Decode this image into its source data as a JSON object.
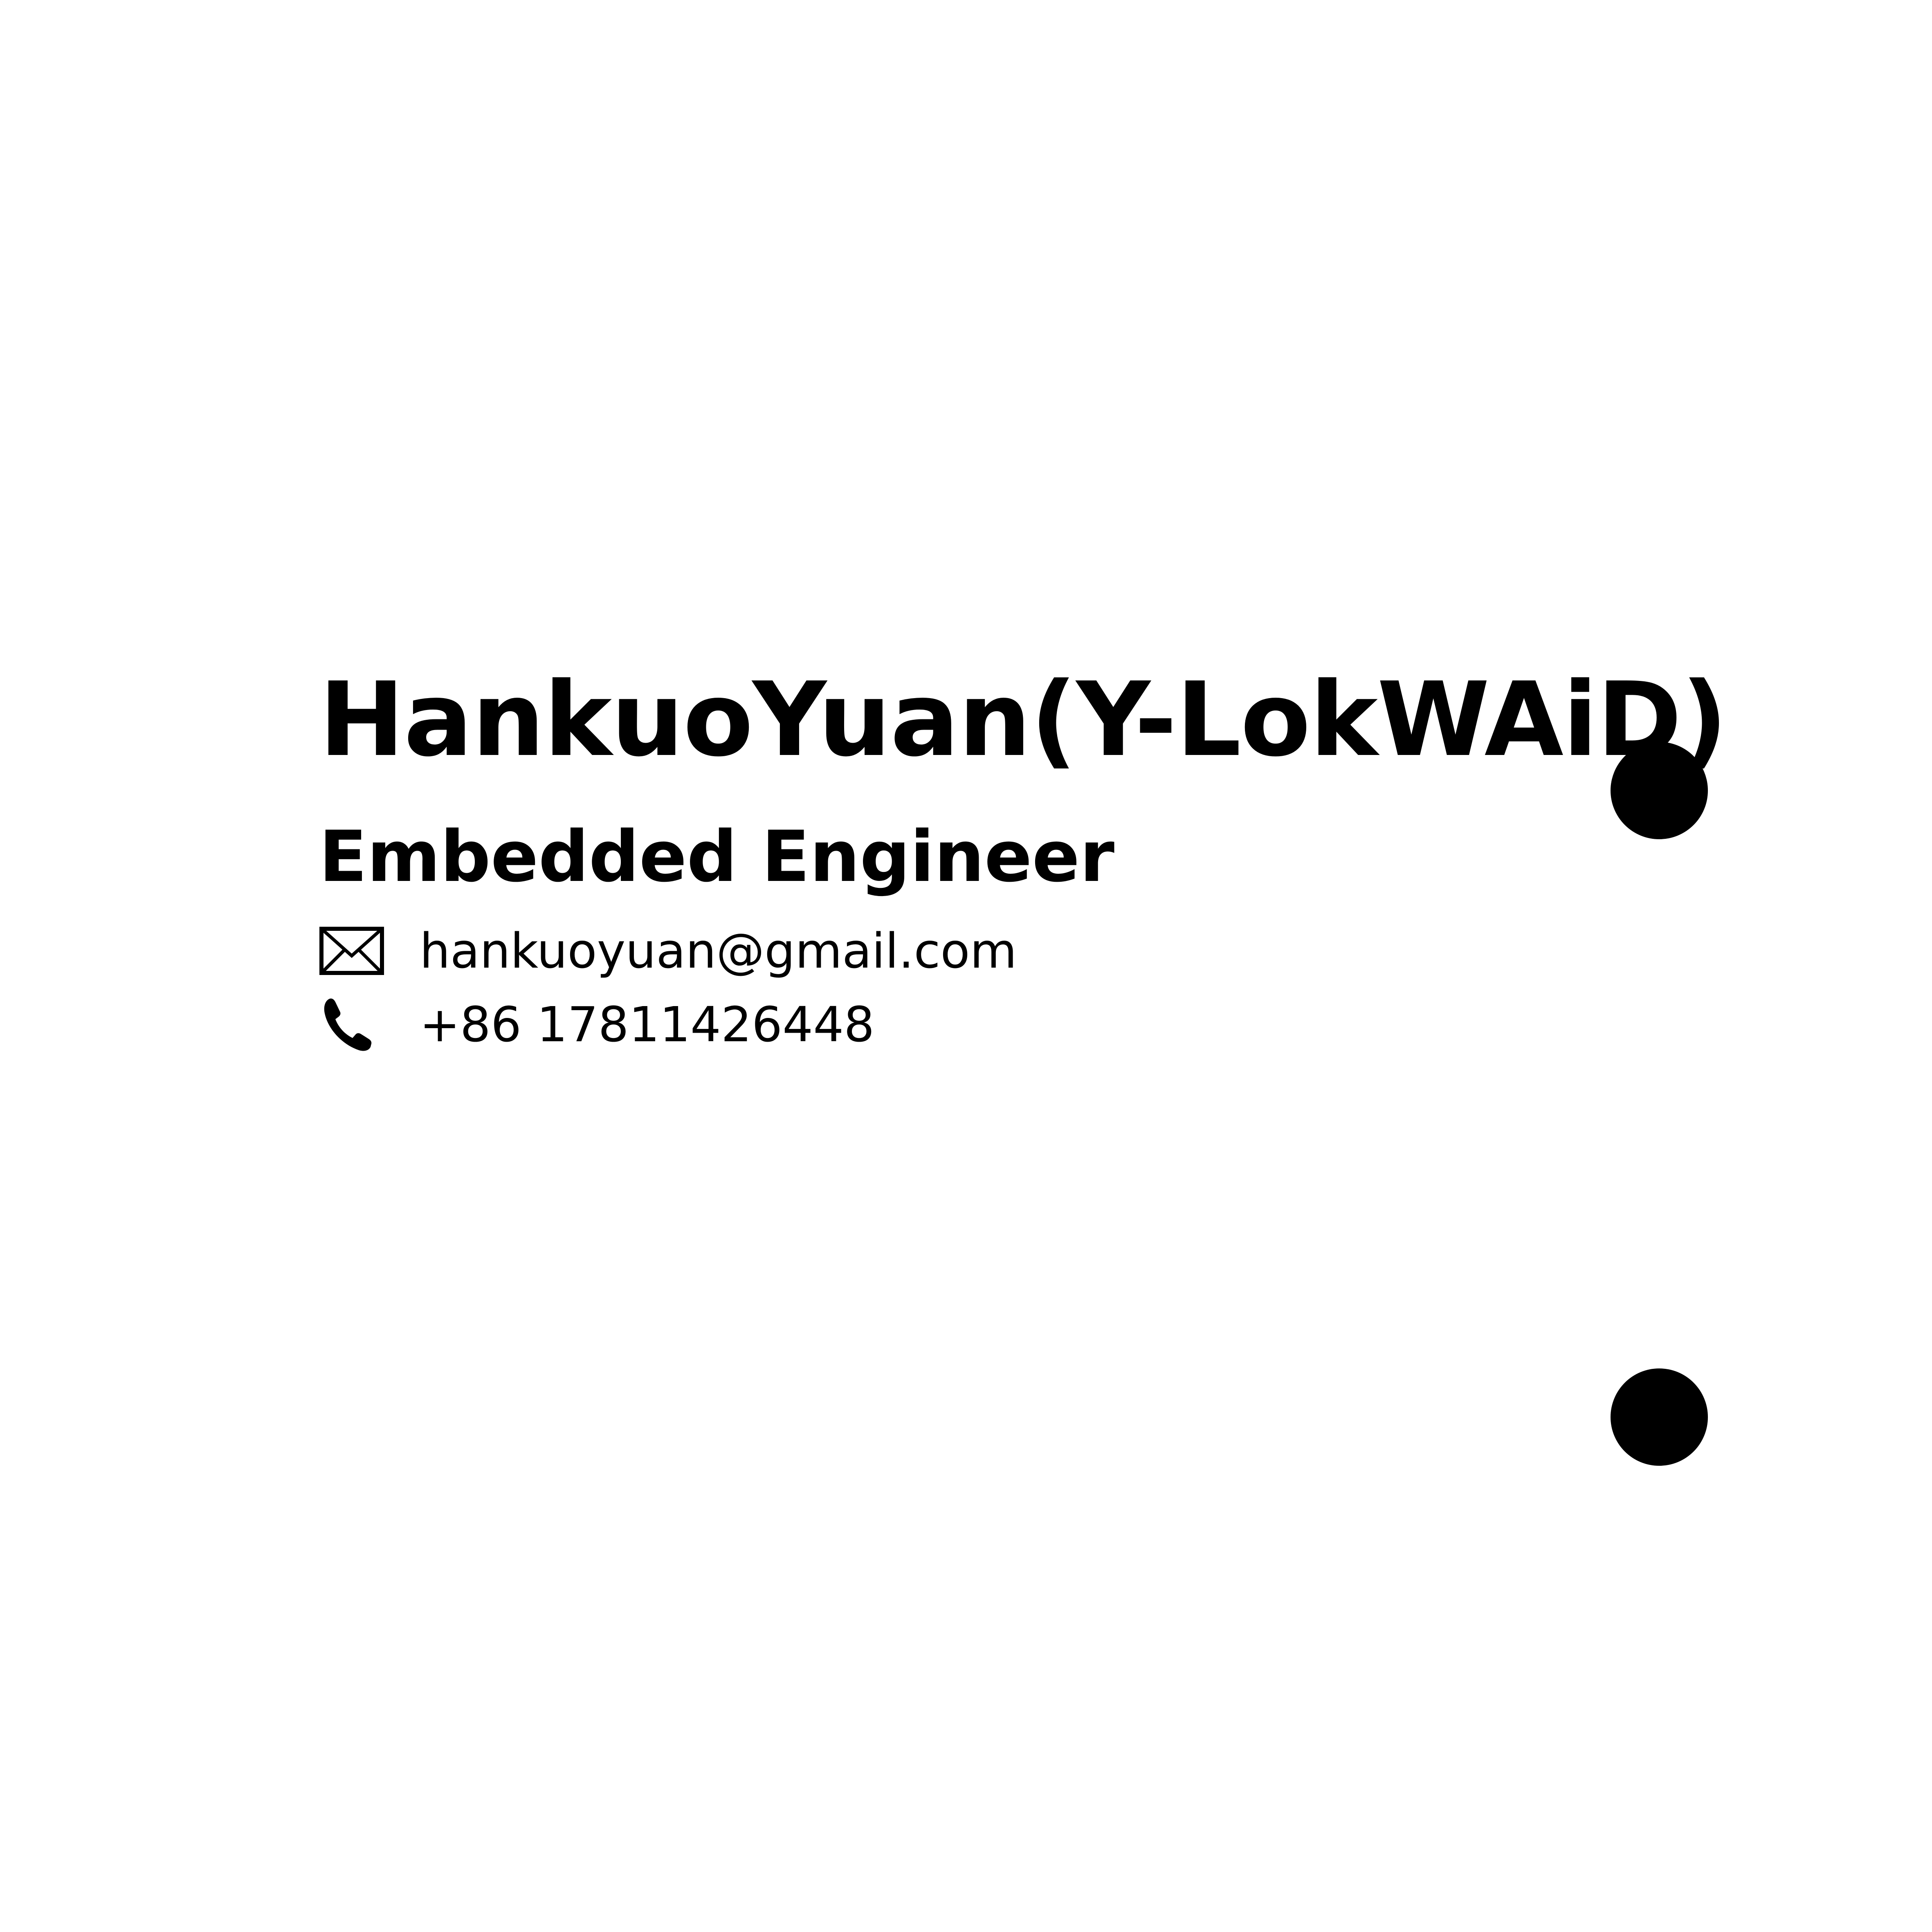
{
  "profile": {
    "name": "HankuoYuan(Y-LokWAiD)",
    "role": "Embedded Engineer"
  },
  "contacts": {
    "email": {
      "icon": "envelope-icon",
      "value": "hankuoyuan@gmail.com"
    },
    "phone": {
      "icon": "phone-icon",
      "value": "+86 17811426448"
    }
  },
  "decor": {
    "dot_color": "#000000",
    "text_color": "#000000",
    "background": "#ffffff"
  }
}
